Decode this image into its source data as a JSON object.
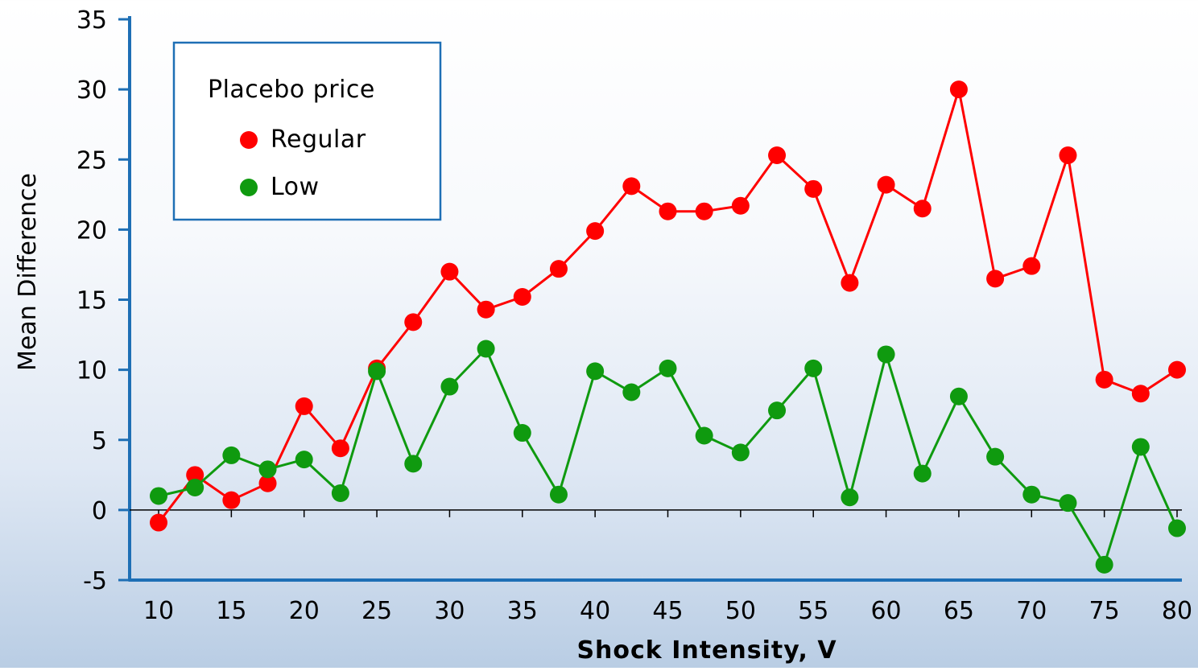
{
  "chart_data": {
    "type": "line",
    "title": "",
    "xlabel": "Shock  Intensity, V",
    "ylabel": "Mean  Difference",
    "xlim": [
      8,
      80
    ],
    "ylim": [
      -5,
      35
    ],
    "x_ticks": [
      10,
      15,
      20,
      25,
      30,
      35,
      40,
      45,
      50,
      55,
      60,
      65,
      70,
      75,
      80
    ],
    "y_ticks": [
      -5,
      0,
      5,
      10,
      15,
      20,
      25,
      30,
      35
    ],
    "grid": false,
    "legend": {
      "title": "Placebo price",
      "placement": "top-left"
    },
    "x": [
      10,
      12.5,
      15,
      17.5,
      20,
      22.5,
      25,
      27.5,
      30,
      32.5,
      35,
      37.5,
      40,
      42.5,
      45,
      47.5,
      50,
      52.5,
      55,
      57.5,
      60,
      62.5,
      65,
      67.5,
      70,
      72.5,
      75,
      77.5,
      80
    ],
    "series": [
      {
        "name": "Regular",
        "color": "#ff0000",
        "values": [
          -0.9,
          2.5,
          0.7,
          1.9,
          7.4,
          4.4,
          10.1,
          13.4,
          17.0,
          14.3,
          15.2,
          17.2,
          19.9,
          23.1,
          21.3,
          21.3,
          21.7,
          25.3,
          22.9,
          16.2,
          23.2,
          21.5,
          30.0,
          16.5,
          17.4,
          25.3,
          9.3,
          8.3,
          10.0
        ]
      },
      {
        "name": "Low",
        "color": "#0f9a0f",
        "values": [
          1.0,
          1.6,
          3.9,
          2.9,
          3.6,
          1.2,
          9.9,
          3.3,
          8.8,
          11.5,
          5.5,
          1.1,
          9.9,
          8.4,
          10.1,
          5.3,
          4.1,
          7.1,
          10.1,
          0.9,
          11.1,
          2.6,
          8.1,
          3.8,
          1.1,
          0.5,
          -3.9,
          4.5,
          -1.3
        ]
      }
    ]
  }
}
